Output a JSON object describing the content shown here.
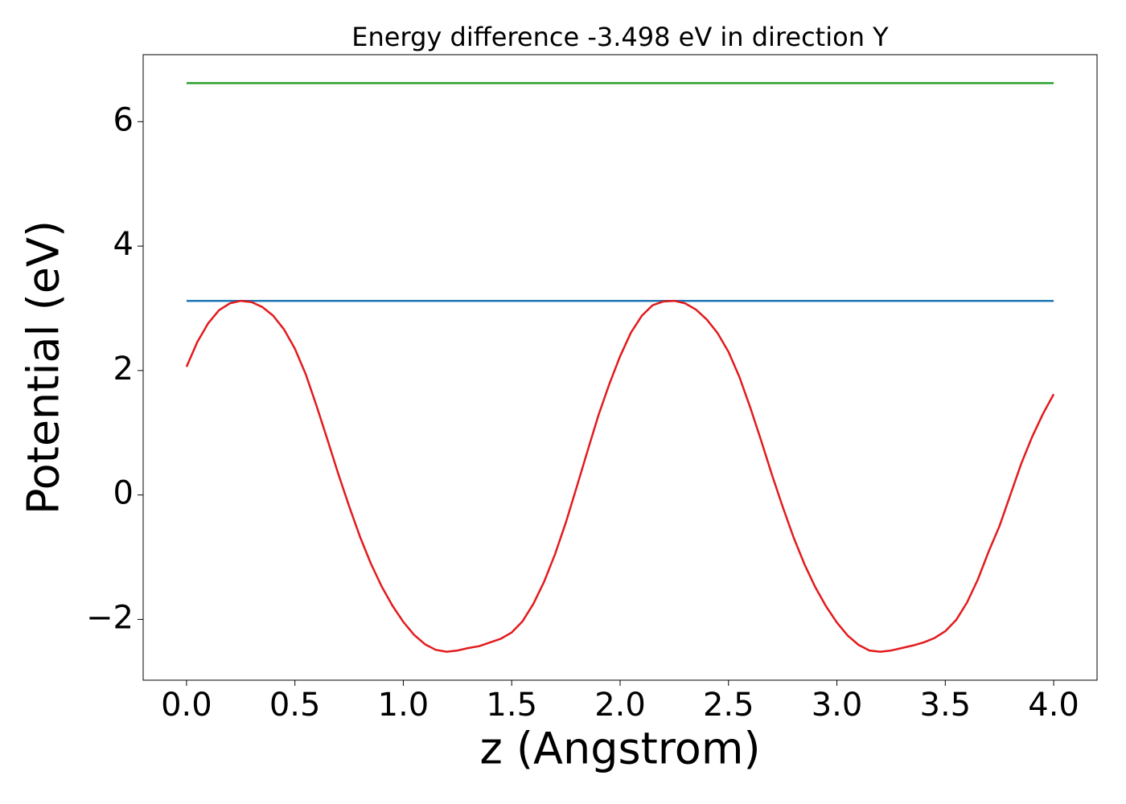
{
  "chart_data": {
    "type": "line",
    "title": "Energy difference -3.498 eV in direction Y",
    "xlabel": "z (Angstrom)",
    "ylabel": "Potential (eV)",
    "xlim": [
      -0.2,
      4.2
    ],
    "ylim": [
      -2.977,
      7.077
    ],
    "xticks": [
      {
        "value": 0,
        "label": "0.0"
      },
      0.5,
      {
        "value": 1,
        "label": "1.0"
      },
      1.5,
      {
        "value": 2,
        "label": "2.0"
      },
      2.5,
      {
        "value": 3,
        "label": "3.0"
      },
      3.5,
      {
        "value": 4,
        "label": "4.0"
      }
    ],
    "yticks": [
      {
        "value": -2,
        "label": "−2"
      },
      0,
      2,
      4,
      6
    ],
    "series": [
      {
        "color": "#2ca02c",
        "x": [
          0,
          4
        ],
        "values": [
          6.62,
          6.62
        ]
      },
      {
        "color": "#1f77b4",
        "x": [
          0,
          4
        ],
        "values": [
          3.12,
          3.12
        ]
      },
      {
        "color": "#e31a1c",
        "x": [
          0,
          0.05,
          0.1,
          0.15,
          0.2,
          0.25,
          0.3,
          0.35,
          0.4,
          0.45,
          0.5,
          0.55,
          0.6,
          0.65,
          0.7,
          0.75,
          0.8,
          0.85,
          0.9,
          0.95,
          1.0,
          1.05,
          1.1,
          1.15,
          1.2,
          1.25,
          1.3,
          1.35,
          1.4,
          1.45,
          1.5,
          1.55,
          1.6,
          1.65,
          1.7,
          1.75,
          1.8,
          1.85,
          1.9,
          1.95,
          2.0,
          2.05,
          2.1,
          2.15,
          2.2,
          2.25,
          2.3,
          2.35,
          2.4,
          2.45,
          2.5,
          2.55,
          2.6,
          2.65,
          2.7,
          2.75,
          2.8,
          2.85,
          2.9,
          2.95,
          3.0,
          3.05,
          3.1,
          3.15,
          3.2,
          3.25,
          3.3,
          3.35,
          3.4,
          3.45,
          3.5,
          3.55,
          3.6,
          3.65,
          3.7,
          3.75,
          3.8,
          3.85,
          3.9,
          3.95,
          4.0
        ],
        "values": [
          2.06,
          2.46,
          2.76,
          2.97,
          3.08,
          3.12,
          3.1,
          3.02,
          2.88,
          2.66,
          2.35,
          1.94,
          1.43,
          0.89,
          0.34,
          -0.18,
          -0.67,
          -1.1,
          -1.47,
          -1.78,
          -2.04,
          -2.25,
          -2.4,
          -2.49,
          -2.52,
          -2.5,
          -2.46,
          -2.43,
          -2.37,
          -2.31,
          -2.21,
          -2.03,
          -1.75,
          -1.39,
          -0.95,
          -0.44,
          0.13,
          0.71,
          1.28,
          1.78,
          2.23,
          2.61,
          2.88,
          3.05,
          3.11,
          3.12,
          3.08,
          2.98,
          2.82,
          2.6,
          2.3,
          1.9,
          1.41,
          0.88,
          0.33,
          -0.19,
          -0.68,
          -1.11,
          -1.48,
          -1.79,
          -2.05,
          -2.26,
          -2.41,
          -2.5,
          -2.52,
          -2.5,
          -2.46,
          -2.42,
          -2.37,
          -2.3,
          -2.19,
          -2.01,
          -1.73,
          -1.36,
          -0.91,
          -0.5,
          0.0,
          0.5,
          0.93,
          1.3,
          1.62
        ]
      }
    ]
  }
}
